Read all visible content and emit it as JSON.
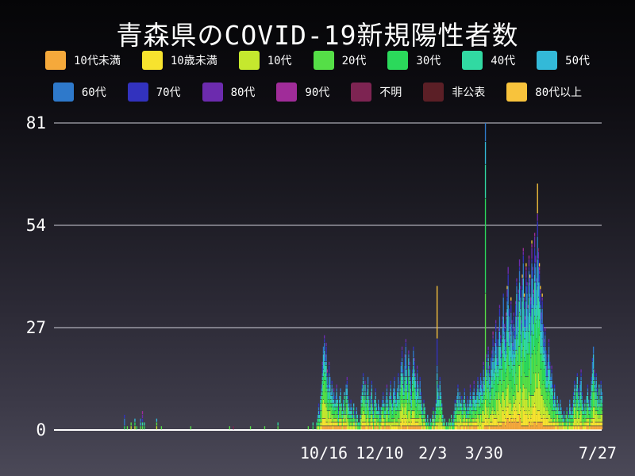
{
  "title": "青森県のCOVID-19新規陽性者数",
  "chart_data": {
    "type": "bar",
    "stacked": true,
    "title": "青森県のCOVID-19新規陽性者数",
    "xlabel": "",
    "ylabel": "",
    "ylim": [
      0,
      81
    ],
    "y_ticks": [
      0,
      27,
      54,
      81
    ],
    "grid": "horizontal",
    "legend_position": "top",
    "x_ticks": [
      {
        "label": "10/16",
        "day": 279
      },
      {
        "label": "12/10",
        "day": 338
      },
      {
        "label": "2/3",
        "day": 394
      },
      {
        "label": "3/30",
        "day": 448
      },
      {
        "label": "7/27",
        "day": 568
      }
    ],
    "groups": [
      {
        "name": "10代未満",
        "color": "#F5A93B"
      },
      {
        "name": "10歳未満",
        "color": "#F7E32E"
      },
      {
        "name": "10代",
        "color": "#C5E82E"
      },
      {
        "name": "20代",
        "color": "#55DF47"
      },
      {
        "name": "30代",
        "color": "#2BD95B"
      },
      {
        "name": "40代",
        "color": "#31D9A2"
      },
      {
        "name": "50代",
        "color": "#33B9D8"
      },
      {
        "name": "60代",
        "color": "#2E79CB"
      },
      {
        "name": "70代",
        "color": "#3232BE"
      },
      {
        "name": "80代",
        "color": "#6C2BAE"
      },
      {
        "name": "90代",
        "color": "#A02C99"
      },
      {
        "name": "不明",
        "color": "#7D2452"
      },
      {
        "name": "非公表",
        "color": "#5B1F26"
      },
      {
        "name": "80代以上",
        "color": "#F8C33C"
      }
    ],
    "legend_rows": [
      [
        0,
        1,
        2,
        3,
        4,
        5,
        6
      ],
      [
        7,
        8,
        9,
        10,
        11,
        12,
        13
      ]
    ],
    "default_fractions": [
      0.05,
      0.07,
      0.13,
      0.17,
      0.14,
      0.13,
      0.11,
      0.09,
      0.05,
      0.03,
      0.01,
      0.005,
      0.005,
      0.01
    ],
    "sporadic": [
      [
        68,
        4
      ],
      [
        71,
        1
      ],
      [
        75,
        2
      ],
      [
        79,
        3
      ],
      [
        81,
        1
      ],
      [
        85,
        3
      ],
      [
        87,
        5
      ],
      [
        89,
        2
      ],
      [
        102,
        3
      ],
      [
        107,
        1
      ],
      [
        138,
        1
      ],
      [
        179,
        1
      ],
      [
        183,
        1
      ],
      [
        201,
        1
      ],
      [
        216,
        1
      ],
      [
        230,
        2
      ],
      [
        262,
        1
      ],
      [
        267,
        2
      ]
    ],
    "runs": [
      {
        "start": 271,
        "values": [
          2,
          4,
          7,
          5,
          9,
          12,
          18,
          22,
          25,
          20,
          23,
          16,
          12,
          18,
          14,
          10,
          13,
          9,
          11,
          7,
          9,
          12,
          8,
          6,
          9,
          11,
          7,
          5,
          8,
          10,
          6,
          12,
          14,
          9,
          7,
          5,
          8,
          6,
          4,
          7,
          5,
          3,
          6,
          4,
          2
        ]
      },
      {
        "start": 316,
        "values": [
          2,
          4,
          9,
          12,
          15,
          10,
          13,
          8,
          11,
          14,
          9,
          6,
          10,
          13,
          8,
          5,
          8,
          11,
          7,
          5,
          8,
          6,
          4,
          6,
          8,
          10,
          7,
          5,
          9,
          12,
          8,
          6,
          10,
          13,
          9,
          7,
          11,
          14,
          10,
          8
        ]
      },
      {
        "start": 356,
        "values": [
          11,
          15,
          9,
          13,
          18,
          22,
          16,
          12,
          20,
          24,
          17,
          13,
          21,
          18,
          14,
          10,
          16,
          22,
          19,
          15,
          11,
          17,
          13,
          9,
          14,
          10,
          7,
          5,
          8,
          6
        ]
      },
      {
        "start": 386,
        "values": [
          3,
          2,
          4,
          2,
          1,
          3,
          2,
          4,
          6,
          3,
          5,
          8,
          38,
          12,
          9,
          14,
          10,
          7,
          4,
          2,
          3,
          1,
          2,
          1,
          2
        ]
      },
      {
        "start": 411,
        "values": [
          3,
          2,
          4,
          2,
          3,
          5,
          8,
          6,
          9,
          12,
          8,
          10,
          7,
          9,
          6,
          8,
          11,
          7,
          5,
          9,
          6,
          8,
          12,
          9,
          7,
          10,
          13,
          9,
          8,
          11,
          14,
          10,
          12,
          15,
          13
        ]
      },
      {
        "start": 446,
        "values": [
          12,
          18,
          14,
          81,
          20,
          16,
          22,
          17,
          13,
          19
        ]
      },
      {
        "start": 456,
        "values": [
          21,
          26,
          18,
          23,
          29,
          24,
          19,
          27,
          33,
          25,
          21,
          30,
          36,
          28,
          24,
          31,
          38,
          43,
          32,
          26,
          35,
          29,
          23,
          31,
          27
        ]
      },
      {
        "start": 481,
        "values": [
          34,
          40,
          30,
          37,
          45,
          38,
          29,
          41,
          48,
          36,
          30,
          44,
          39,
          33,
          46,
          41,
          35,
          50,
          43,
          37,
          52,
          46,
          40,
          65,
          48
        ]
      },
      {
        "start": 506,
        "values": [
          44,
          38,
          31,
          36,
          28,
          24,
          27,
          21,
          17,
          20,
          24,
          18,
          14,
          17,
          12,
          9,
          12,
          8,
          6,
          9,
          7,
          5,
          8,
          6,
          4
        ]
      },
      {
        "start": 531,
        "values": [
          3,
          5,
          2,
          4,
          6,
          3,
          5,
          8,
          6,
          4,
          7,
          10,
          13,
          9,
          12,
          15,
          11,
          8,
          13,
          16
        ]
      },
      {
        "start": 551,
        "values": [
          10,
          7,
          5,
          8,
          6,
          9,
          12,
          8,
          6,
          10,
          14,
          19,
          22,
          16,
          12,
          15,
          11,
          8,
          12,
          9,
          13,
          10
        ]
      }
    ],
    "highlights": {
      "68": [
        0,
        0,
        0,
        0,
        1,
        0,
        0,
        2,
        1,
        0,
        0,
        0,
        0,
        0
      ],
      "87": [
        0,
        0,
        0,
        1,
        0,
        1,
        0,
        0,
        1,
        1,
        1,
        0,
        0,
        0
      ],
      "183": [
        0,
        0,
        0,
        0,
        0,
        0,
        0,
        0,
        0,
        0,
        0,
        1,
        0,
        0
      ],
      "398": [
        1,
        0,
        1,
        2,
        2,
        7,
        2,
        2,
        7,
        0,
        0,
        0,
        0,
        14
      ],
      "449": [
        1,
        2,
        5,
        28,
        25,
        9,
        6,
        5,
        0,
        0,
        0,
        0,
        0,
        0
      ],
      "504": [
        2,
        3,
        6,
        10,
        9,
        8,
        7,
        6,
        4,
        2,
        0,
        0,
        0,
        8
      ],
      "563": [
        1,
        2,
        3,
        4,
        3,
        3,
        4,
        2,
        0,
        0,
        0,
        0,
        0,
        0
      ]
    },
    "colors": {
      "background_top": "#050507",
      "background_bottom": "#4B4958",
      "gridline": "#CFCFD8",
      "baseline": "#FFFFFF",
      "text": "#FFFFFF"
    }
  }
}
